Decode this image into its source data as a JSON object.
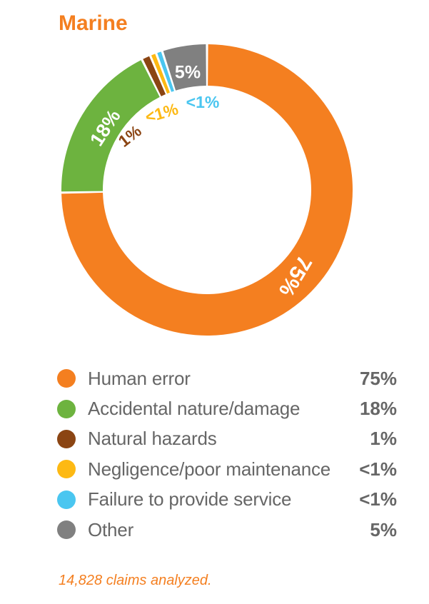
{
  "title": "Marine",
  "footnote": "14,828 claims analyzed.",
  "chart_data": {
    "type": "pie",
    "donut": true,
    "title": "Marine",
    "categories": [
      "Human error",
      "Accidental nature/damage",
      "Natural hazards",
      "Negligence/poor maintenance",
      "Failure to provide service",
      "Other"
    ],
    "values": [
      75,
      18,
      1,
      0.7,
      0.7,
      5
    ],
    "value_labels": [
      "75%",
      "18%",
      "1%",
      "<1%",
      "<1%",
      "5%"
    ],
    "colors": [
      "#f47f20",
      "#6db33f",
      "#8b4513",
      "#fdb913",
      "#4ac6f0",
      "#808080"
    ],
    "legend_placement": "bottom",
    "start_angle_deg": 0,
    "direction": "clockwise"
  }
}
